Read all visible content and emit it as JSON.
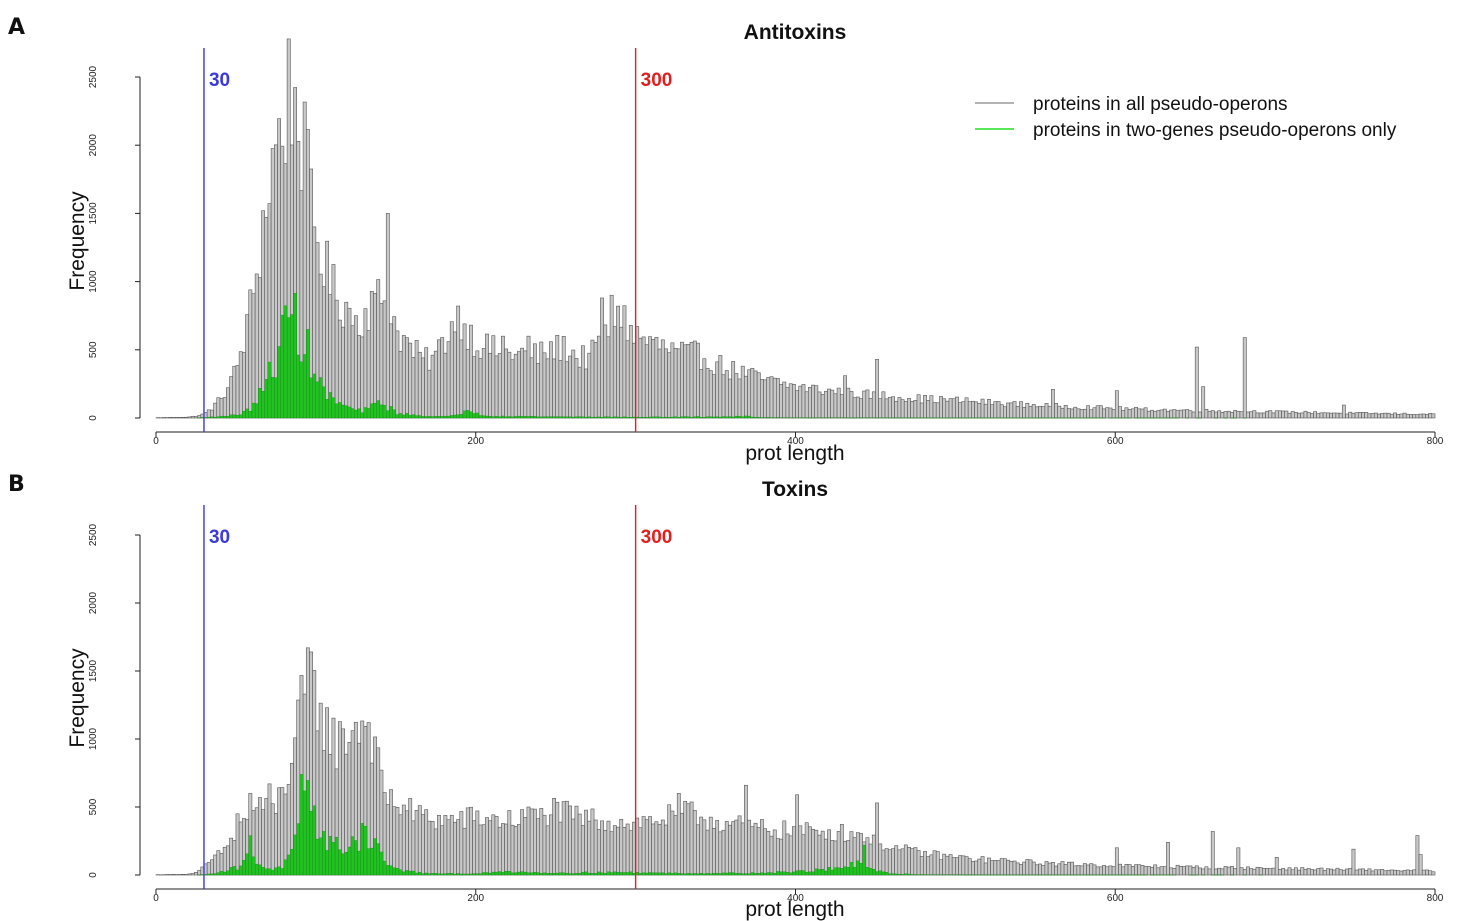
{
  "colors": {
    "all_bars": "#c8c8c8",
    "all_bar_edge": "#555555",
    "two_gene_bars": "#22c222",
    "two_gene_edge": "#157a15",
    "line_30": "#3a3ad8",
    "line_300": "#e02020",
    "legend_gray": "#9a9a9a",
    "legend_green": "#22e022"
  },
  "legend": {
    "all": "proteins in all pseudo-operons",
    "two": "proteins in two-genes pseudo-operons only"
  },
  "chart_data": [
    {
      "panel": "A",
      "type": "bar",
      "title": "Antitoxins",
      "xlabel": "prot length",
      "ylabel": "Frequency",
      "xlim": [
        0,
        800
      ],
      "ylim": [
        0,
        2500
      ],
      "xticks": [
        0,
        200,
        400,
        600,
        800
      ],
      "xtick_labels": [
        "0",
        "200",
        "400",
        "600",
        "800"
      ],
      "yticks": [
        0,
        500,
        1000,
        1500,
        2000,
        2500
      ],
      "ytick_labels": [
        "0",
        "500",
        "1000",
        "1500",
        "2000",
        "2500"
      ],
      "bin_width": 2,
      "reference_lines": [
        {
          "x": 30,
          "label": "30",
          "color": "#3a3ad8"
        },
        {
          "x": 300,
          "label": "300",
          "color": "#e02020"
        }
      ],
      "series": [
        {
          "name": "proteins in all pseudo-operons",
          "profile": [
            [
              0,
              2
            ],
            [
              20,
              6
            ],
            [
              26,
              15
            ],
            [
              30,
              30
            ],
            [
              36,
              80
            ],
            [
              44,
              200
            ],
            [
              50,
              350
            ],
            [
              56,
              600
            ],
            [
              62,
              1000
            ],
            [
              68,
              1500
            ],
            [
              74,
              1950
            ],
            [
              80,
              2150
            ],
            [
              84,
              2450
            ],
            [
              88,
              2250
            ],
            [
              92,
              2000
            ],
            [
              96,
              1650
            ],
            [
              100,
              1350
            ],
            [
              106,
              1100
            ],
            [
              112,
              900
            ],
            [
              120,
              800
            ],
            [
              126,
              700
            ],
            [
              132,
              800
            ],
            [
              138,
              850
            ],
            [
              142,
              900
            ],
            [
              146,
              780
            ],
            [
              152,
              620
            ],
            [
              160,
              500
            ],
            [
              168,
              420
            ],
            [
              174,
              440
            ],
            [
              180,
              560
            ],
            [
              186,
              700
            ],
            [
              190,
              760
            ],
            [
              194,
              650
            ],
            [
              200,
              560
            ],
            [
              210,
              500
            ],
            [
              220,
              480
            ],
            [
              230,
              470
            ],
            [
              240,
              460
            ],
            [
              248,
              500
            ],
            [
              256,
              520
            ],
            [
              264,
              440
            ],
            [
              272,
              450
            ],
            [
              278,
              560
            ],
            [
              284,
              640
            ],
            [
              290,
              760
            ],
            [
              294,
              700
            ],
            [
              298,
              620
            ],
            [
              304,
              580
            ],
            [
              312,
              540
            ],
            [
              320,
              500
            ],
            [
              330,
              470
            ],
            [
              340,
              460
            ],
            [
              350,
              400
            ],
            [
              360,
              350
            ],
            [
              370,
              320
            ],
            [
              380,
              280
            ],
            [
              400,
              230
            ],
            [
              420,
              200
            ],
            [
              440,
              175
            ],
            [
              460,
              160
            ],
            [
              480,
              140
            ],
            [
              500,
              130
            ],
            [
              520,
              115
            ],
            [
              540,
              100
            ],
            [
              560,
              90
            ],
            [
              580,
              80
            ],
            [
              600,
              70
            ],
            [
              620,
              62
            ],
            [
              650,
              55
            ],
            [
              700,
              45
            ],
            [
              750,
              35
            ],
            [
              800,
              28
            ]
          ],
          "spikes": [
            [
              143,
              1500
            ],
            [
              198,
              450
            ],
            [
              216,
              600
            ],
            [
              232,
              600
            ],
            [
              278,
              880
            ],
            [
              284,
              900
            ],
            [
              288,
              820
            ],
            [
              430,
              310
            ],
            [
              450,
              430
            ],
            [
              560,
              210
            ],
            [
              600,
              200
            ],
            [
              650,
              520
            ],
            [
              654,
              230
            ],
            [
              680,
              590
            ],
            [
              742,
              90
            ],
            [
              742,
              95
            ]
          ]
        },
        {
          "name": "proteins in two-genes pseudo-operons only",
          "profile": [
            [
              0,
              0
            ],
            [
              26,
              0
            ],
            [
              30,
              5
            ],
            [
              46,
              15
            ],
            [
              56,
              40
            ],
            [
              62,
              110
            ],
            [
              68,
              220
            ],
            [
              74,
              420
            ],
            [
              80,
              620
            ],
            [
              84,
              800
            ],
            [
              88,
              700
            ],
            [
              92,
              580
            ],
            [
              96,
              450
            ],
            [
              100,
              300
            ],
            [
              106,
              180
            ],
            [
              112,
              120
            ],
            [
              120,
              80
            ],
            [
              126,
              50
            ],
            [
              132,
              60
            ],
            [
              136,
              90
            ],
            [
              140,
              120
            ],
            [
              144,
              90
            ],
            [
              150,
              40
            ],
            [
              160,
              20
            ],
            [
              180,
              10
            ],
            [
              190,
              20
            ],
            [
              196,
              80
            ],
            [
              200,
              30
            ],
            [
              210,
              15
            ],
            [
              240,
              10
            ],
            [
              280,
              8
            ],
            [
              300,
              6
            ],
            [
              360,
              10
            ],
            [
              370,
              12
            ],
            [
              376,
              5
            ],
            [
              400,
              2
            ],
            [
              500,
              1
            ],
            [
              800,
              0
            ]
          ],
          "spikes": []
        }
      ]
    },
    {
      "panel": "B",
      "type": "bar",
      "title": "Toxins",
      "xlabel": "prot length",
      "ylabel": "Frequency",
      "xlim": [
        0,
        800
      ],
      "ylim": [
        0,
        2500
      ],
      "xticks": [
        0,
        200,
        400,
        600,
        800
      ],
      "xtick_labels": [
        "0",
        "200",
        "400",
        "600",
        "800"
      ],
      "yticks": [
        0,
        500,
        1000,
        1500,
        2000,
        2500
      ],
      "ytick_labels": [
        "0",
        "500",
        "1000",
        "1500",
        "2000",
        "2500"
      ],
      "bin_width": 2,
      "reference_lines": [
        {
          "x": 30,
          "label": "30",
          "color": "#3a3ad8"
        },
        {
          "x": 300,
          "label": "300",
          "color": "#e02020"
        }
      ],
      "series": [
        {
          "name": "proteins in all pseudo-operons",
          "profile": [
            [
              0,
              2
            ],
            [
              20,
              5
            ],
            [
              26,
              20
            ],
            [
              30,
              60
            ],
            [
              36,
              120
            ],
            [
              44,
              200
            ],
            [
              50,
              300
            ],
            [
              56,
              420
            ],
            [
              62,
              500
            ],
            [
              68,
              480
            ],
            [
              74,
              480
            ],
            [
              80,
              650
            ],
            [
              86,
              900
            ],
            [
              90,
              1150
            ],
            [
              94,
              1400
            ],
            [
              98,
              1350
            ],
            [
              102,
              1250
            ],
            [
              108,
              1050
            ],
            [
              114,
              950
            ],
            [
              120,
              1050
            ],
            [
              126,
              1100
            ],
            [
              132,
              1150
            ],
            [
              136,
              1000
            ],
            [
              140,
              700
            ],
            [
              146,
              550
            ],
            [
              152,
              520
            ],
            [
              160,
              460
            ],
            [
              170,
              420
            ],
            [
              180,
              400
            ],
            [
              200,
              420
            ],
            [
              220,
              400
            ],
            [
              240,
              430
            ],
            [
              250,
              480
            ],
            [
              260,
              430
            ],
            [
              280,
              400
            ],
            [
              300,
              380
            ],
            [
              320,
              420
            ],
            [
              330,
              460
            ],
            [
              340,
              430
            ],
            [
              350,
              400
            ],
            [
              360,
              370
            ],
            [
              380,
              340
            ],
            [
              400,
              320
            ],
            [
              420,
              320
            ],
            [
              440,
              300
            ],
            [
              450,
              260
            ],
            [
              460,
              200
            ],
            [
              480,
              160
            ],
            [
              500,
              130
            ],
            [
              520,
              110
            ],
            [
              560,
              85
            ],
            [
              600,
              70
            ],
            [
              640,
              60
            ],
            [
              700,
              48
            ],
            [
              760,
              38
            ],
            [
              800,
              30
            ]
          ],
          "spikes": [
            [
              50,
              450
            ],
            [
              58,
              600
            ],
            [
              64,
              570
            ],
            [
              70,
              670
            ],
            [
              96,
              1640
            ],
            [
              232,
              500
            ],
            [
              326,
              600
            ],
            [
              368,
              660
            ],
            [
              400,
              590
            ],
            [
              450,
              530
            ],
            [
              600,
              200
            ],
            [
              632,
              240
            ],
            [
              660,
              320
            ],
            [
              676,
              200
            ],
            [
              700,
              130
            ],
            [
              748,
              190
            ],
            [
              787,
              290
            ],
            [
              790,
              150
            ]
          ]
        },
        {
          "name": "proteins in two-genes pseudo-operons only",
          "profile": [
            [
              0,
              0
            ],
            [
              26,
              0
            ],
            [
              30,
              4
            ],
            [
              40,
              20
            ],
            [
              52,
              60
            ],
            [
              58,
              180
            ],
            [
              62,
              100
            ],
            [
              68,
              60
            ],
            [
              74,
              40
            ],
            [
              80,
              70
            ],
            [
              86,
              180
            ],
            [
              90,
              400
            ],
            [
              94,
              550
            ],
            [
              98,
              450
            ],
            [
              102,
              350
            ],
            [
              108,
              250
            ],
            [
              114,
              200
            ],
            [
              120,
              220
            ],
            [
              126,
              250
            ],
            [
              130,
              300
            ],
            [
              134,
              280
            ],
            [
              138,
              220
            ],
            [
              142,
              120
            ],
            [
              150,
              40
            ],
            [
              170,
              10
            ],
            [
              200,
              10
            ],
            [
              220,
              25
            ],
            [
              250,
              15
            ],
            [
              290,
              20
            ],
            [
              300,
              18
            ],
            [
              330,
              12
            ],
            [
              380,
              15
            ],
            [
              410,
              30
            ],
            [
              430,
              60
            ],
            [
              440,
              80
            ],
            [
              446,
              40
            ],
            [
              460,
              10
            ],
            [
              480,
              3
            ],
            [
              520,
              1
            ],
            [
              800,
              0
            ]
          ],
          "spikes": [
            [
              58,
              290
            ],
            [
              90,
              740
            ],
            [
              96,
              470
            ],
            [
              128,
              380
            ],
            [
              442,
              220
            ]
          ]
        }
      ]
    }
  ]
}
